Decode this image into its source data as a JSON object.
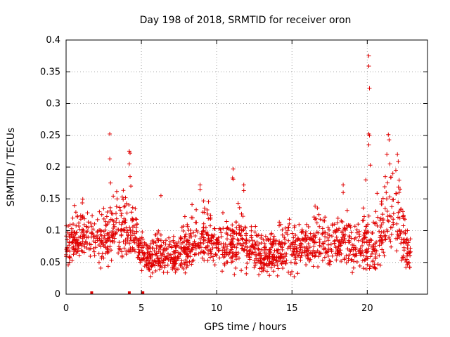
{
  "chart_data": {
    "type": "scatter",
    "title": "Day 198 of 2018, SRMTID for receiver oron",
    "xlabel": "GPS time / hours",
    "ylabel": "SRMTID / TECUs",
    "xlim": [
      0,
      24
    ],
    "ylim": [
      0,
      0.4
    ],
    "x_ticks": [
      0,
      5,
      10,
      15,
      20
    ],
    "x_tick_labels": [
      "0",
      "5",
      "10",
      "15",
      "20"
    ],
    "y_ticks": [
      0,
      0.05,
      0.1,
      0.15,
      0.2,
      0.25,
      0.3,
      0.35,
      0.4
    ],
    "y_tick_labels": [
      "0",
      "0.05",
      "0.1",
      "0.15",
      "0.2",
      "0.25",
      "0.3",
      "0.35",
      "0.4"
    ],
    "grid": true,
    "marker": "plus",
    "point_color": "#e00000",
    "data_range_hours": [
      0,
      22.9
    ],
    "envelope": {
      "hours": [
        0.0,
        0.5,
        1.0,
        1.5,
        2.0,
        2.5,
        3.0,
        3.5,
        4.0,
        4.5,
        5.0,
        5.5,
        6.0,
        6.5,
        7.0,
        7.5,
        8.0,
        8.5,
        9.0,
        9.5,
        10.0,
        10.5,
        11.0,
        11.5,
        12.0,
        12.5,
        13.0,
        13.5,
        14.0,
        14.5,
        15.0,
        15.5,
        16.0,
        16.5,
        17.0,
        17.5,
        18.0,
        18.5,
        19.0,
        19.5,
        20.0,
        20.5,
        21.0,
        21.5,
        22.0,
        22.5,
        22.9
      ],
      "median": [
        0.075,
        0.085,
        0.09,
        0.085,
        0.075,
        0.08,
        0.1,
        0.1,
        0.095,
        0.095,
        0.07,
        0.055,
        0.06,
        0.06,
        0.058,
        0.06,
        0.07,
        0.085,
        0.09,
        0.09,
        0.08,
        0.075,
        0.07,
        0.08,
        0.075,
        0.065,
        0.06,
        0.06,
        0.065,
        0.07,
        0.07,
        0.07,
        0.075,
        0.08,
        0.085,
        0.08,
        0.085,
        0.09,
        0.07,
        0.075,
        0.08,
        0.075,
        0.1,
        0.13,
        0.13,
        0.08,
        0.055
      ],
      "spread": [
        0.03,
        0.03,
        0.032,
        0.03,
        0.03,
        0.032,
        0.04,
        0.04,
        0.04,
        0.035,
        0.025,
        0.022,
        0.025,
        0.022,
        0.02,
        0.022,
        0.03,
        0.035,
        0.035,
        0.035,
        0.03,
        0.03,
        0.03,
        0.035,
        0.03,
        0.025,
        0.025,
        0.025,
        0.025,
        0.03,
        0.03,
        0.03,
        0.03,
        0.03,
        0.032,
        0.03,
        0.035,
        0.035,
        0.03,
        0.03,
        0.035,
        0.04,
        0.045,
        0.05,
        0.05,
        0.035,
        0.02
      ]
    },
    "peaks": [
      {
        "x": 2.9,
        "y": 0.252
      },
      {
        "x": 2.9,
        "y": 0.213
      },
      {
        "x": 2.95,
        "y": 0.175
      },
      {
        "x": 4.2,
        "y": 0.225
      },
      {
        "x": 4.25,
        "y": 0.222
      },
      {
        "x": 4.2,
        "y": 0.205
      },
      {
        "x": 4.25,
        "y": 0.185
      },
      {
        "x": 4.3,
        "y": 0.17
      },
      {
        "x": 6.3,
        "y": 0.155
      },
      {
        "x": 8.9,
        "y": 0.172
      },
      {
        "x": 8.9,
        "y": 0.165
      },
      {
        "x": 11.1,
        "y": 0.197
      },
      {
        "x": 11.05,
        "y": 0.183
      },
      {
        "x": 11.1,
        "y": 0.181
      },
      {
        "x": 11.8,
        "y": 0.172
      },
      {
        "x": 11.8,
        "y": 0.163
      },
      {
        "x": 18.4,
        "y": 0.172
      },
      {
        "x": 18.4,
        "y": 0.16
      },
      {
        "x": 19.9,
        "y": 0.18
      },
      {
        "x": 20.1,
        "y": 0.375
      },
      {
        "x": 20.1,
        "y": 0.359
      },
      {
        "x": 20.15,
        "y": 0.324
      },
      {
        "x": 20.1,
        "y": 0.252
      },
      {
        "x": 20.15,
        "y": 0.25
      },
      {
        "x": 20.1,
        "y": 0.235
      },
      {
        "x": 20.2,
        "y": 0.203
      },
      {
        "x": 21.4,
        "y": 0.251
      },
      {
        "x": 21.45,
        "y": 0.243
      },
      {
        "x": 21.3,
        "y": 0.22
      },
      {
        "x": 21.5,
        "y": 0.205
      },
      {
        "x": 22.0,
        "y": 0.22
      },
      {
        "x": 21.9,
        "y": 0.195
      },
      {
        "x": 21.7,
        "y": 0.19
      },
      {
        "x": 21.2,
        "y": 0.185
      }
    ],
    "baseline_markers_hours": [
      1.7,
      4.2,
      5.1
    ]
  }
}
